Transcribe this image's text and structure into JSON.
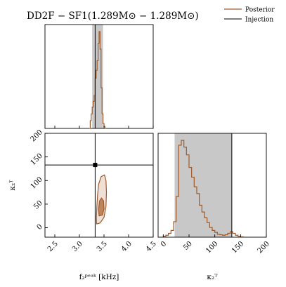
{
  "title": "DD2F − SF1(1.289M⊙ − 1.289M⊙)",
  "legend": [
    {
      "label": "Posterior",
      "color": "#9c5a2c"
    },
    {
      "label": "Injection",
      "color": "#000000"
    }
  ],
  "colors": {
    "posterior": "#9c5a2c",
    "fill_light": "#e2c4b0",
    "fill_dark": "#c1855c",
    "band": "#c8c8c8",
    "injection": "#000000"
  },
  "chart_data": {
    "type": "corner",
    "parameters": [
      {
        "key": "f2peak",
        "xlabel": "f₂ᵖᵉᵃᵏ [kHz]",
        "range": [
          2.3,
          4.5
        ],
        "ticks": [
          "2.5",
          "3.0",
          "3.5",
          "4.0",
          "4.5"
        ],
        "tick_values": [
          2.5,
          3.0,
          3.5,
          4.0,
          4.5
        ],
        "injection": 3.32,
        "credible_interval": [
          3.26,
          3.48
        ]
      },
      {
        "key": "kappa2T",
        "xlabel": "κ₂ᵀ",
        "range": [
          -10,
          200
        ],
        "ticks": [
          "0",
          "50",
          "100",
          "150",
          "200"
        ],
        "tick_values": [
          0,
          50,
          100,
          150,
          200
        ],
        "injection": 133,
        "credible_interval": [
          22,
          133
        ]
      }
    ],
    "joint": {
      "ylabel": "κ₂ᵀ",
      "yrange": [
        -20,
        200
      ],
      "yticks": [
        "0",
        "50",
        "100",
        "150",
        "200"
      ],
      "ytick_values": [
        0,
        50,
        100,
        150,
        200
      ]
    },
    "hist_f2peak": {
      "edges": [
        3.2,
        3.22,
        3.24,
        3.26,
        3.28,
        3.3,
        3.32,
        3.34,
        3.36,
        3.38,
        3.4,
        3.42,
        3.44,
        3.46,
        3.48,
        3.5,
        3.52,
        3.54
      ],
      "counts": [
        0,
        0.08,
        0.15,
        0.22,
        0.28,
        0.34,
        0.52,
        0.6,
        0.7,
        0.88,
        1.0,
        0.82,
        0.42,
        0.15,
        0.05,
        0.02,
        0
      ]
    },
    "hist_kappa2T": {
      "edges": [
        0,
        5,
        10,
        15,
        20,
        25,
        30,
        35,
        40,
        45,
        50,
        55,
        60,
        65,
        70,
        75,
        80,
        85,
        90,
        95,
        100,
        105,
        110,
        115,
        120,
        125,
        130,
        135,
        140,
        145,
        150,
        155
      ],
      "counts": [
        0.01,
        0.02,
        0.04,
        0.07,
        0.16,
        0.42,
        0.95,
        1.0,
        0.93,
        0.85,
        0.72,
        0.62,
        0.52,
        0.45,
        0.33,
        0.26,
        0.2,
        0.15,
        0.1,
        0.07,
        0.05,
        0.03,
        0.025,
        0.02,
        0.025,
        0.04,
        0.055,
        0.04,
        0.02,
        0.01,
        0.005
      ]
    },
    "contours": [
      {
        "level": "outer",
        "points": [
          [
            3.35,
            8
          ],
          [
            3.42,
            10
          ],
          [
            3.5,
            22
          ],
          [
            3.54,
            45
          ],
          [
            3.55,
            75
          ],
          [
            3.54,
            100
          ],
          [
            3.51,
            112
          ],
          [
            3.44,
            108
          ],
          [
            3.39,
            92
          ],
          [
            3.37,
            70
          ],
          [
            3.355,
            45
          ],
          [
            3.345,
            22
          ]
        ]
      },
      {
        "level": "inner",
        "points": [
          [
            3.4,
            25
          ],
          [
            3.47,
            27
          ],
          [
            3.5,
            40
          ],
          [
            3.49,
            57
          ],
          [
            3.45,
            63
          ],
          [
            3.41,
            57
          ],
          [
            3.39,
            40
          ]
        ]
      }
    ],
    "injection_point": [
      3.32,
      133
    ]
  }
}
